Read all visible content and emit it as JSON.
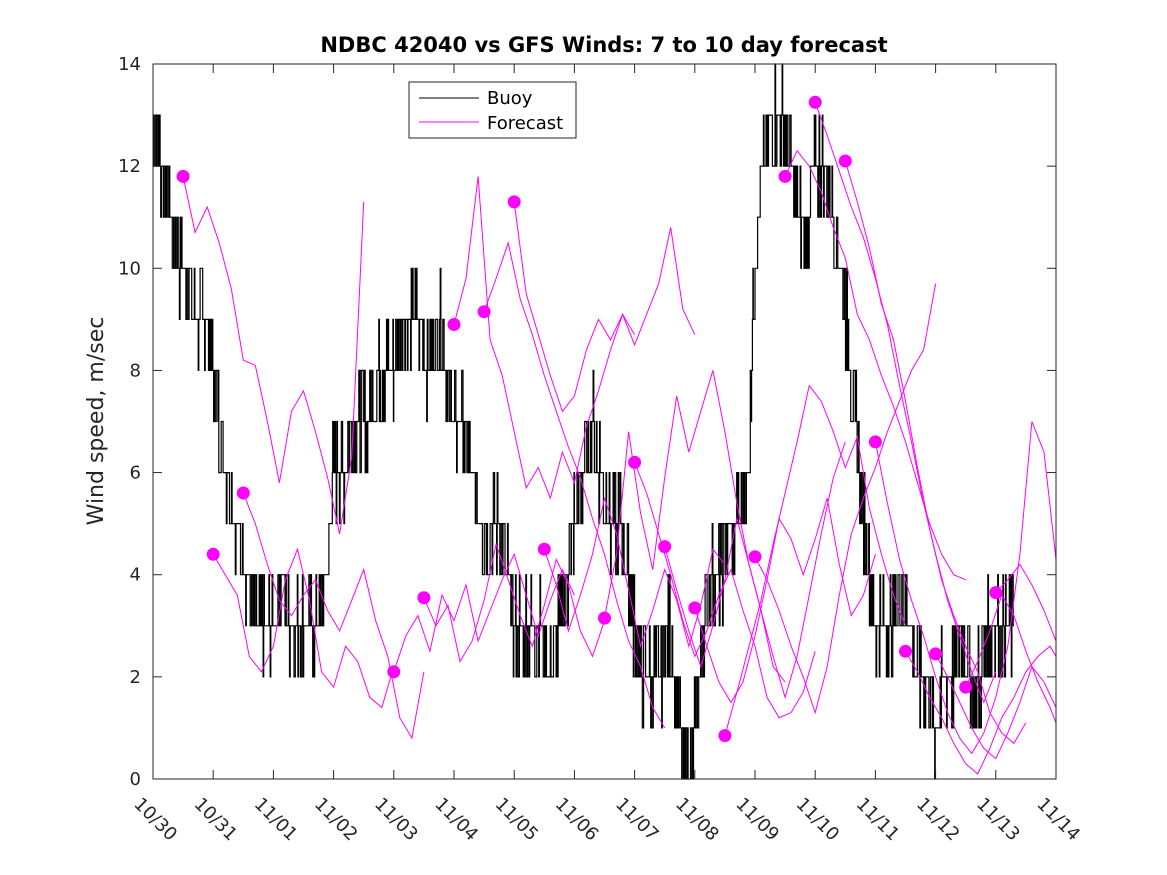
{
  "chart_data": {
    "type": "line",
    "title": "NDBC 42040 vs GFS Winds: 7 to 10 day forecast",
    "xlabel": "",
    "ylabel": "Wind speed, m/sec",
    "x_unit": "days since 10/30",
    "xlim": [
      0,
      15
    ],
    "ylim": [
      0,
      14
    ],
    "y_ticks": [
      0,
      2,
      4,
      6,
      8,
      10,
      12,
      14
    ],
    "x_tick_labels": [
      "10/30",
      "10/31",
      "11/01",
      "11/02",
      "11/03",
      "11/04",
      "11/05",
      "11/06",
      "11/07",
      "11/08",
      "11/09",
      "11/10",
      "11/11",
      "11/12",
      "11/13",
      "11/14"
    ],
    "legend": {
      "position": "top-center",
      "entries": [
        {
          "name": "Buoy",
          "color": "#000000"
        },
        {
          "name": "Forecast",
          "color": "#ff00ff"
        }
      ]
    },
    "series": [
      {
        "name": "Buoy",
        "color": "#000000",
        "style": "stepped-noisy",
        "x": [
          0,
          0.15,
          0.3,
          0.45,
          0.6,
          0.75,
          0.9,
          1.0,
          1.1,
          1.25,
          1.4,
          1.55,
          1.7,
          1.85,
          2.0,
          2.15,
          2.3,
          2.45,
          2.6,
          2.75,
          2.9,
          3.0,
          3.15,
          3.3,
          3.45,
          3.6,
          3.75,
          3.9,
          4.0,
          4.15,
          4.3,
          4.45,
          4.6,
          4.75,
          4.9,
          5.0,
          5.15,
          5.3,
          5.45,
          5.6,
          5.75,
          5.9,
          6.0,
          6.15,
          6.3,
          6.45,
          6.6,
          6.75,
          6.9,
          7.0,
          7.15,
          7.3,
          7.45,
          7.6,
          7.75,
          7.9,
          8.0,
          8.15,
          8.3,
          8.45,
          8.6,
          8.75,
          8.9,
          9.0,
          9.15,
          9.3,
          9.45,
          9.6,
          9.75,
          9.9,
          10.0,
          10.15,
          10.3,
          10.45,
          10.6,
          10.75,
          10.9,
          11.0,
          11.15,
          11.3,
          11.45,
          11.6,
          11.75,
          11.9,
          12.0,
          12.15,
          12.3,
          12.45,
          12.6,
          12.75,
          12.9,
          13.0,
          13.15,
          13.3,
          13.45,
          13.6,
          13.75,
          13.9,
          14.0,
          14.15,
          14.3
        ],
        "y": [
          13,
          12,
          11,
          10,
          10,
          9,
          9,
          8,
          7,
          6,
          5,
          4,
          3,
          3,
          3,
          4,
          3,
          3,
          3,
          3,
          4,
          6,
          6,
          7,
          7,
          7,
          8,
          8,
          8,
          9,
          9,
          9,
          8,
          9,
          8,
          7,
          7,
          6,
          5,
          5,
          5,
          4,
          3,
          3,
          3,
          3,
          2,
          3,
          4,
          5,
          6,
          7,
          6,
          5,
          5,
          4,
          3,
          2,
          2,
          2,
          3,
          1,
          0,
          1,
          3,
          4,
          4,
          5,
          5,
          6,
          10,
          12,
          13,
          13,
          12,
          11,
          11,
          12,
          12,
          11,
          10,
          8,
          6,
          4,
          3,
          3,
          3,
          4,
          3,
          2,
          2,
          1,
          2,
          2,
          3,
          2,
          2,
          3,
          3,
          3,
          3
        ]
      },
      {
        "name": "Forecast",
        "color": "#ff00ff",
        "run_marker": [
          0.5,
          11.8
        ],
        "x": [
          0.5,
          0.7,
          0.9,
          1.1,
          1.3,
          1.5,
          1.7,
          1.9,
          2.1,
          2.3,
          2.5,
          2.7,
          2.9,
          3.1,
          3.3,
          3.5
        ],
        "y": [
          11.8,
          10.7,
          11.2,
          10.5,
          9.6,
          8.2,
          8.1,
          7.0,
          5.8,
          7.2,
          7.6,
          6.8,
          5.9,
          4.8,
          6.3,
          11.3
        ]
      },
      {
        "name": "Forecast",
        "color": "#ff00ff",
        "run_marker": [
          1.0,
          4.4
        ],
        "x": [
          1.0,
          1.2,
          1.4,
          1.6,
          1.8,
          2.0,
          2.2,
          2.4,
          2.6,
          2.8,
          3.0,
          3.2,
          3.4,
          3.6,
          3.8,
          4.0
        ],
        "y": [
          4.4,
          4.0,
          3.6,
          2.4,
          2.1,
          2.6,
          3.9,
          4.5,
          3.5,
          2.1,
          1.8,
          2.6,
          2.3,
          1.6,
          1.4,
          2.2
        ]
      },
      {
        "name": "Forecast",
        "color": "#ff00ff",
        "run_marker": [
          1.5,
          5.6
        ],
        "x": [
          1.5,
          1.7,
          1.9,
          2.1,
          2.3,
          2.5,
          2.7,
          2.9,
          3.1,
          3.3,
          3.5,
          3.7,
          3.9,
          4.1,
          4.3,
          4.5
        ],
        "y": [
          5.6,
          5.0,
          4.2,
          3.5,
          3.2,
          3.6,
          3.9,
          3.3,
          2.9,
          3.5,
          4.1,
          3.1,
          2.4,
          1.2,
          0.8,
          2.1
        ]
      },
      {
        "name": "Forecast",
        "color": "#ff00ff",
        "run_marker": [
          4.0,
          2.1
        ],
        "x": [
          4.0,
          4.2,
          4.4,
          4.6,
          4.8,
          5.0,
          5.2,
          5.4,
          5.6,
          5.8,
          6.0,
          6.2,
          6.4,
          6.6,
          6.8,
          7.0
        ],
        "y": [
          2.1,
          2.8,
          3.2,
          2.5,
          3.6,
          3.1,
          3.8,
          2.7,
          3.3,
          3.9,
          4.4,
          3.6,
          2.8,
          3.5,
          4.1,
          3.6
        ]
      },
      {
        "name": "Forecast",
        "color": "#ff00ff",
        "run_marker": [
          4.5,
          3.55
        ],
        "x": [
          4.5,
          4.7,
          4.9,
          5.1,
          5.3,
          5.5,
          5.7,
          5.9,
          6.1,
          6.3,
          6.5,
          6.7,
          6.9,
          7.1,
          7.3,
          7.5
        ],
        "y": [
          3.55,
          3.0,
          3.4,
          2.3,
          2.7,
          3.5,
          4.6,
          3.9,
          3.2,
          2.6,
          3.4,
          4.3,
          3.8,
          2.9,
          2.4,
          3.1
        ]
      },
      {
        "name": "Forecast",
        "color": "#ff00ff",
        "run_marker": [
          5.0,
          8.9
        ],
        "x": [
          5.0,
          5.2,
          5.4,
          5.6,
          5.8,
          6.0,
          6.2,
          6.4,
          6.6,
          6.8,
          7.0,
          7.2,
          7.4,
          7.6,
          7.8,
          8.0
        ],
        "y": [
          8.9,
          9.8,
          11.8,
          8.6,
          7.9,
          6.8,
          5.7,
          6.1,
          5.5,
          6.4,
          5.8,
          6.9,
          7.6,
          8.4,
          9.1,
          8.7
        ]
      },
      {
        "name": "Forecast",
        "color": "#ff00ff",
        "run_marker": [
          5.5,
          9.15
        ],
        "x": [
          5.5,
          5.7,
          5.9,
          6.1,
          6.3,
          6.5,
          6.7,
          6.9,
          7.1,
          7.3,
          7.5,
          7.7,
          7.9,
          8.1,
          8.3,
          8.5
        ],
        "y": [
          9.15,
          9.8,
          10.5,
          9.4,
          8.7,
          7.9,
          7.2,
          6.5,
          5.9,
          5.1,
          4.4,
          3.5,
          2.7,
          2.2,
          1.4,
          1.0
        ]
      },
      {
        "name": "Forecast",
        "color": "#ff00ff",
        "run_marker": [
          6.0,
          11.3
        ],
        "x": [
          6.0,
          6.2,
          6.4,
          6.6,
          6.8,
          7.0,
          7.2,
          7.4,
          7.6,
          7.8,
          8.0,
          8.2,
          8.4,
          8.6,
          8.8,
          9.0
        ],
        "y": [
          11.3,
          9.5,
          8.7,
          7.9,
          7.2,
          7.5,
          8.4,
          9.0,
          8.6,
          9.1,
          8.5,
          9.1,
          9.7,
          10.8,
          9.2,
          8.7
        ]
      },
      {
        "name": "Forecast",
        "color": "#ff00ff",
        "run_marker": [
          6.5,
          4.5
        ],
        "x": [
          6.5,
          6.7,
          6.9,
          7.1,
          7.3,
          7.5,
          7.7,
          7.9,
          8.1,
          8.3,
          8.5,
          8.7,
          8.9,
          9.1,
          9.3,
          9.5
        ],
        "y": [
          4.5,
          3.8,
          2.9,
          3.6,
          4.4,
          5.5,
          4.8,
          3.7,
          2.6,
          3.3,
          4.1,
          3.5,
          2.6,
          3.4,
          4.5,
          4.2
        ]
      },
      {
        "name": "Forecast",
        "color": "#ff00ff",
        "run_marker": [
          7.5,
          3.15
        ],
        "x": [
          7.5,
          7.7,
          7.9,
          8.1,
          8.3,
          8.5,
          8.7,
          8.9,
          9.1,
          9.3,
          9.5,
          9.7,
          9.9,
          10.1,
          10.3,
          10.5
        ],
        "y": [
          3.15,
          4.4,
          6.8,
          5.2,
          4.1,
          5.9,
          7.5,
          6.4,
          7.2,
          8.0,
          6.8,
          5.4,
          4.2,
          3.3,
          2.2,
          1.9
        ]
      },
      {
        "name": "Forecast",
        "color": "#ff00ff",
        "run_marker": [
          8.0,
          6.2
        ],
        "x": [
          8.0,
          8.2,
          8.4,
          8.6,
          8.8,
          9.0,
          9.2,
          9.4,
          9.6,
          9.8,
          10.0,
          10.2,
          10.4,
          10.6,
          10.8,
          11.0
        ],
        "y": [
          6.2,
          5.6,
          4.8,
          4.0,
          3.1,
          2.4,
          2.9,
          3.6,
          4.1,
          3.3,
          2.6,
          1.6,
          1.2,
          1.3,
          1.7,
          2.5
        ]
      },
      {
        "name": "Forecast",
        "color": "#ff00ff",
        "run_marker": [
          8.5,
          4.55
        ],
        "x": [
          8.5,
          8.7,
          8.9,
          9.1,
          9.3,
          9.5,
          9.7,
          9.9,
          10.1,
          10.3,
          10.5,
          10.7,
          10.9,
          11.1,
          11.3,
          11.5
        ],
        "y": [
          4.55,
          3.7,
          2.9,
          2.2,
          3.0,
          3.9,
          5.1,
          4.2,
          3.3,
          2.4,
          1.6,
          2.4,
          3.6,
          4.8,
          5.9,
          6.6
        ]
      },
      {
        "name": "Forecast",
        "color": "#ff00ff",
        "run_marker": [
          9.0,
          3.35
        ],
        "x": [
          9.0,
          9.2,
          9.4,
          9.6,
          9.8,
          10.0,
          10.2,
          10.4,
          10.6,
          10.8,
          11.0,
          11.2,
          11.4,
          11.6,
          11.8,
          12.0
        ],
        "y": [
          3.35,
          2.6,
          1.9,
          1.5,
          1.9,
          2.8,
          3.9,
          5.1,
          4.7,
          4.0,
          4.7,
          5.5,
          4.2,
          3.2,
          3.6,
          4.4
        ]
      },
      {
        "name": "Forecast",
        "color": "#ff00ff",
        "run_marker": [
          9.5,
          0.85
        ],
        "x": [
          9.5,
          9.7,
          9.9,
          10.1,
          10.3,
          10.5,
          10.7,
          10.9,
          11.1,
          11.3,
          11.5,
          11.7,
          11.9,
          12.1,
          12.3,
          12.5
        ],
        "y": [
          0.85,
          1.7,
          2.6,
          3.5,
          4.6,
          5.6,
          6.6,
          7.7,
          7.4,
          6.8,
          6.1,
          6.7,
          5.3,
          4.4,
          3.6,
          3.0
        ]
      },
      {
        "name": "Forecast",
        "color": "#ff00ff",
        "run_marker": [
          10.0,
          4.35
        ],
        "x": [
          10.0,
          10.2,
          10.4,
          10.6,
          10.8,
          11.0,
          11.2,
          11.4,
          11.6,
          11.8,
          12.0,
          12.2,
          12.4,
          12.6,
          12.8,
          13.0
        ],
        "y": [
          4.35,
          3.9,
          3.3,
          2.6,
          2.0,
          1.3,
          2.2,
          3.6,
          4.8,
          5.5,
          6.1,
          6.8,
          7.4,
          8.0,
          8.4,
          9.7
        ]
      },
      {
        "name": "Forecast",
        "color": "#ff00ff",
        "run_marker": [
          10.5,
          11.8
        ],
        "x": [
          10.5,
          10.7,
          10.9,
          11.1,
          11.3,
          11.5,
          11.7,
          11.9,
          12.1,
          12.3,
          12.5,
          12.7,
          12.9,
          13.1,
          13.3,
          13.5
        ],
        "y": [
          11.8,
          12.3,
          12.0,
          11.5,
          10.8,
          10.2,
          9.1,
          8.6,
          7.9,
          7.3,
          6.6,
          5.8,
          5.0,
          4.4,
          4.0,
          3.9
        ]
      },
      {
        "name": "Forecast",
        "color": "#ff00ff",
        "run_marker": [
          11.0,
          13.25
        ],
        "x": [
          11.0,
          11.2,
          11.4,
          11.6,
          11.8,
          12.0,
          12.2,
          12.4,
          12.6,
          12.8,
          13.0,
          13.2,
          13.4,
          13.6,
          13.8,
          14.0
        ],
        "y": [
          13.25,
          12.6,
          11.9,
          11.2,
          10.6,
          9.8,
          8.9,
          7.7,
          6.6,
          5.4,
          4.4,
          3.5,
          2.8,
          2.1,
          1.5,
          2.1
        ]
      },
      {
        "name": "Forecast",
        "color": "#ff00ff",
        "run_marker": [
          11.5,
          12.1
        ],
        "x": [
          11.5,
          11.7,
          11.9,
          12.1,
          12.3,
          12.5,
          12.7,
          12.9,
          13.1,
          13.3,
          13.5,
          13.7,
          13.9,
          14.1,
          14.3,
          14.5
        ],
        "y": [
          12.1,
          11.3,
          10.4,
          9.3,
          8.6,
          7.4,
          6.1,
          4.9,
          3.9,
          3.2,
          2.6,
          2.1,
          1.3,
          0.9,
          0.7,
          1.1
        ]
      },
      {
        "name": "Forecast",
        "color": "#ff00ff",
        "run_marker": [
          12.0,
          6.6
        ],
        "x": [
          12.0,
          12.2,
          12.4,
          12.6,
          12.8,
          13.0,
          13.2,
          13.4,
          13.6,
          13.8,
          14.0,
          14.2,
          14.4,
          14.6,
          14.8,
          15.0
        ],
        "y": [
          6.6,
          5.4,
          4.3,
          3.5,
          2.8,
          2.0,
          1.3,
          0.8,
          0.5,
          0.9,
          1.6,
          2.6,
          4.4,
          7.0,
          6.4,
          4.3
        ]
      },
      {
        "name": "Forecast",
        "color": "#ff00ff",
        "run_marker": [
          12.5,
          2.5
        ],
        "x": [
          12.5,
          12.7,
          12.9,
          13.1,
          13.3,
          13.5,
          13.7,
          13.9,
          14.1,
          14.3,
          14.5,
          14.7,
          14.9,
          15.0
        ],
        "y": [
          2.5,
          2.1,
          1.6,
          1.2,
          0.7,
          0.3,
          0.1,
          0.6,
          1.2,
          1.6,
          2.1,
          2.4,
          2.6,
          2.4
        ]
      },
      {
        "name": "Forecast",
        "color": "#ff00ff",
        "run_marker": [
          13.0,
          2.45
        ],
        "x": [
          13.0,
          13.2,
          13.4,
          13.6,
          13.8,
          14.0,
          14.2,
          14.4,
          14.6,
          14.8,
          15.0
        ],
        "y": [
          2.45,
          2.0,
          1.5,
          1.0,
          0.6,
          0.4,
          0.9,
          1.5,
          2.2,
          1.9,
          1.4
        ]
      },
      {
        "name": "Forecast",
        "color": "#ff00ff",
        "run_marker": [
          13.5,
          1.8
        ],
        "x": [
          13.5,
          13.7,
          13.9,
          14.1,
          14.3,
          14.5,
          14.7,
          14.9,
          15.0
        ],
        "y": [
          1.8,
          2.3,
          2.9,
          3.6,
          3.2,
          2.5,
          1.9,
          1.4,
          1.1
        ]
      },
      {
        "name": "Forecast",
        "color": "#ff00ff",
        "run_marker": [
          14.0,
          3.65
        ],
        "x": [
          14.0,
          14.2,
          14.4,
          14.6,
          14.8,
          15.0
        ],
        "y": [
          3.65,
          3.9,
          4.2,
          3.8,
          3.3,
          2.7
        ]
      }
    ]
  }
}
